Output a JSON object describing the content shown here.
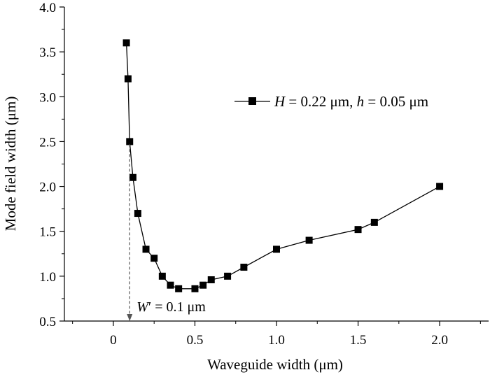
{
  "chart_data": {
    "type": "line",
    "xlabel": "Waveguide width (μm)",
    "ylabel": "Mode field width (μm)",
    "xlim": [
      -0.3,
      2.3
    ],
    "ylim": [
      0.5,
      4.0
    ],
    "xticks": [
      "0",
      "0.5",
      "1.0",
      "1.5",
      "2.0"
    ],
    "yticks": [
      "0.5",
      "1.0",
      "1.5",
      "2.0",
      "2.5",
      "3.0",
      "3.5",
      "4.0"
    ],
    "grid": false,
    "legend_position": "top-right",
    "series": [
      {
        "legend_parts": [
          "H",
          " = 0.22 μm, ",
          "h",
          " = 0.05 μm"
        ],
        "marker": "square",
        "color": "#000000",
        "x": [
          0.08,
          0.09,
          0.1,
          0.12,
          0.15,
          0.2,
          0.25,
          0.3,
          0.35,
          0.4,
          0.5,
          0.55,
          0.6,
          0.7,
          0.8,
          1.0,
          1.2,
          1.5,
          1.6,
          2.0
        ],
        "y": [
          3.6,
          3.2,
          2.5,
          2.1,
          1.7,
          1.3,
          1.2,
          1.0,
          0.9,
          0.86,
          0.86,
          0.9,
          0.96,
          1.0,
          1.1,
          1.3,
          1.4,
          1.52,
          1.6,
          2.0
        ]
      }
    ],
    "annotation": {
      "parts": [
        "W",
        "′ = 0.1 μm"
      ],
      "x": 0.1,
      "y_from": 2.5,
      "style": "dashed-arrow-to-x-axis"
    }
  }
}
